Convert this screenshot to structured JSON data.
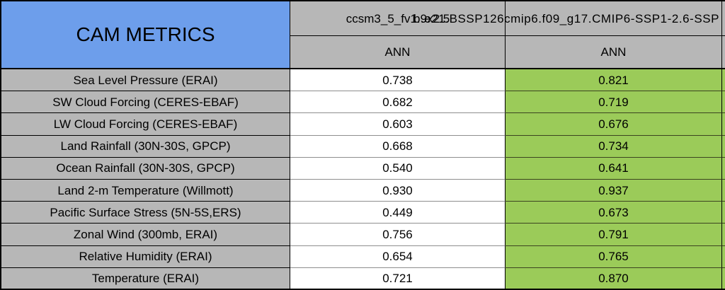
{
  "title": "CAM METRICS",
  "columns": [
    {
      "run": "ccsm3_5_fv1.9x2.5",
      "season": "ANN"
    },
    {
      "run": "b.e21.BSSP126cmip6.f09_g17.CMIP6-SSP1-2.6-SSP",
      "season": "ANN"
    }
  ],
  "rows": [
    {
      "label": "Sea Level Pressure (ERAI)",
      "values": [
        "0.738",
        "0.821"
      ]
    },
    {
      "label": "SW Cloud Forcing (CERES-EBAF)",
      "values": [
        "0.682",
        "0.719"
      ]
    },
    {
      "label": "LW Cloud Forcing (CERES-EBAF)",
      "values": [
        "0.603",
        "0.676"
      ]
    },
    {
      "label": "Land Rainfall (30N-30S, GPCP)",
      "values": [
        "0.668",
        "0.734"
      ]
    },
    {
      "label": "Ocean Rainfall (30N-30S, GPCP)",
      "values": [
        "0.540",
        "0.641"
      ]
    },
    {
      "label": "Land 2-m Temperature (Willmott)",
      "values": [
        "0.930",
        "0.937"
      ]
    },
    {
      "label": "Pacific Surface Stress (5N-5S,ERS)",
      "values": [
        "0.449",
        "0.673"
      ]
    },
    {
      "label": "Zonal Wind (300mb, ERAI)",
      "values": [
        "0.756",
        "0.791"
      ]
    },
    {
      "label": "Relative Humidity (ERAI)",
      "values": [
        "0.654",
        "0.765"
      ]
    },
    {
      "label": "Temperature (ERAI)",
      "values": [
        "0.721",
        "0.870"
      ]
    }
  ],
  "colors": {
    "title_bg": "#6d9eeb",
    "header_bg": "#b7b7b7",
    "label_bg": "#b7b7b7",
    "run1_bg": "#ffffff",
    "run2_bg": "#9bcb59",
    "border": "#000000"
  },
  "chart_data": {
    "type": "table",
    "title": "CAM METRICS",
    "categories": [
      "Sea Level Pressure (ERAI)",
      "SW Cloud Forcing (CERES-EBAF)",
      "LW Cloud Forcing (CERES-EBAF)",
      "Land Rainfall (30N-30S, GPCP)",
      "Ocean Rainfall (30N-30S, GPCP)",
      "Land 2-m Temperature (Willmott)",
      "Pacific Surface Stress (5N-5S,ERS)",
      "Zonal Wind (300mb, ERAI)",
      "Relative Humidity (ERAI)",
      "Temperature (ERAI)"
    ],
    "series": [
      {
        "name": "ccsm3_5_fv1.9x2.5",
        "season": "ANN",
        "values": [
          0.738,
          0.682,
          0.603,
          0.668,
          0.54,
          0.93,
          0.449,
          0.756,
          0.654,
          0.721
        ]
      },
      {
        "name": "b.e21.BSSP126cmip6.f09_g17.CMIP6-SSP1-2.6-SSP",
        "season": "ANN",
        "values": [
          0.821,
          0.719,
          0.676,
          0.734,
          0.641,
          0.937,
          0.673,
          0.791,
          0.765,
          0.87
        ]
      }
    ],
    "layout": "second series column shaded green; third data column clipped at right image edge"
  }
}
